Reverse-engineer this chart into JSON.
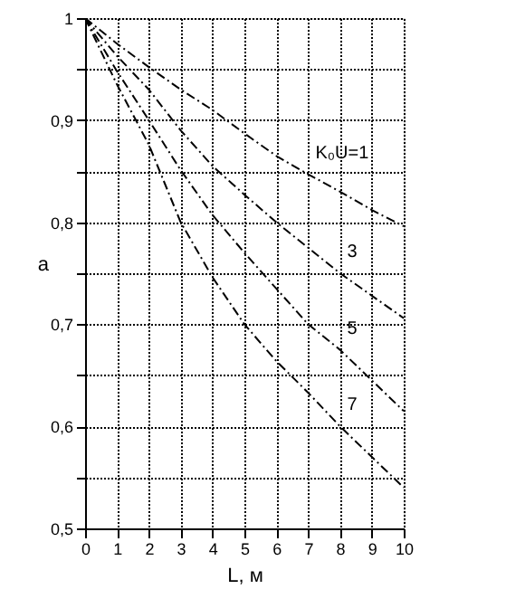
{
  "chart_data": {
    "type": "line",
    "xlabel": "L, м",
    "ylabel": "a",
    "x": [
      0,
      1,
      2,
      3,
      4,
      5,
      6,
      7,
      8,
      9,
      10
    ],
    "series": [
      {
        "name": "K₀U=1",
        "color": "#000000",
        "values": [
          1,
          0.975,
          0.952,
          0.93,
          0.91,
          0.887,
          0.865,
          0.847,
          0.83,
          0.812,
          0.796
        ]
      },
      {
        "name": "3",
        "color": "#000000",
        "values": [
          1,
          0.963,
          0.93,
          0.89,
          0.855,
          0.827,
          0.8,
          0.775,
          0.75,
          0.728,
          0.706
        ]
      },
      {
        "name": "5",
        "color": "#000000",
        "values": [
          1,
          0.948,
          0.9,
          0.851,
          0.807,
          0.77,
          0.735,
          0.7,
          0.675,
          0.645,
          0.615
        ]
      },
      {
        "name": "7",
        "color": "#000000",
        "values": [
          1,
          0.935,
          0.876,
          0.8,
          0.746,
          0.7,
          0.664,
          0.633,
          0.6,
          0.57,
          0.54
        ]
      }
    ],
    "xlim": [
      0,
      10
    ],
    "xticks": [
      0,
      1,
      2,
      3,
      4,
      5,
      6,
      7,
      8,
      9,
      10
    ],
    "ylim": [
      0.5,
      1
    ],
    "yticks": [
      {
        "value": 0.5,
        "label": "0,5"
      },
      {
        "value": 0.55,
        "label": null
      },
      {
        "value": 0.6,
        "label": "0,6"
      },
      {
        "value": 0.65,
        "label": null
      },
      {
        "value": 0.7,
        "label": "0,7"
      },
      {
        "value": 0.75,
        "label": null
      },
      {
        "value": 0.8,
        "label": "0,8"
      },
      {
        "value": 0.85,
        "label": null
      },
      {
        "value": 0.9,
        "label": "0,9"
      },
      {
        "value": 0.95,
        "label": null
      },
      {
        "value": 1,
        "label": "1"
      }
    ],
    "grid": true,
    "legend": false,
    "line_style": "dashed"
  }
}
